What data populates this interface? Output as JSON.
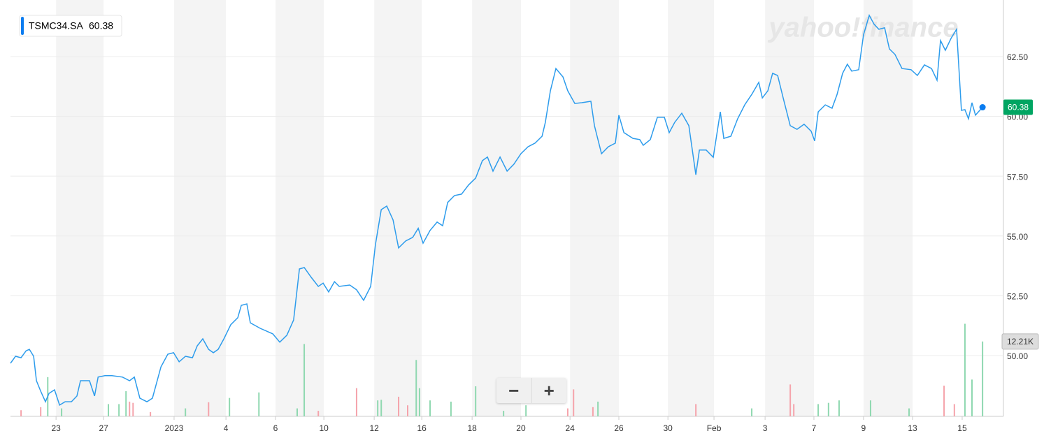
{
  "chart_data": {
    "type": "line",
    "watermark": "yahoo!finance",
    "last_price": 60.38,
    "volume_tag": {
      "value": 12.21,
      "label": "12.21K"
    },
    "xlim": [
      -1.81,
      37.64
    ],
    "xticks": [
      {
        "value": 0,
        "label": "23"
      },
      {
        "value": 1.89,
        "label": "27"
      },
      {
        "value": 4.69,
        "label": "2023"
      },
      {
        "value": 6.75,
        "label": "4"
      },
      {
        "value": 8.72,
        "label": "6"
      },
      {
        "value": 10.64,
        "label": "10"
      },
      {
        "value": 12.64,
        "label": "12"
      },
      {
        "value": 14.53,
        "label": "16"
      },
      {
        "value": 16.53,
        "label": "18"
      },
      {
        "value": 18.47,
        "label": "20"
      },
      {
        "value": 20.42,
        "label": "24"
      },
      {
        "value": 22.36,
        "label": "26"
      },
      {
        "value": 24.31,
        "label": "30"
      },
      {
        "value": 26.14,
        "label": "Feb"
      },
      {
        "value": 28.17,
        "label": "3"
      },
      {
        "value": 30.11,
        "label": "7"
      },
      {
        "value": 32.08,
        "label": "9"
      },
      {
        "value": 34.03,
        "label": "13"
      },
      {
        "value": 36,
        "label": "15"
      }
    ],
    "ylim": [
      47.46,
      64.63
    ],
    "yticks": [
      {
        "value": 50,
        "label": "50.00"
      },
      {
        "value": 52.5,
        "label": "52.50"
      },
      {
        "value": 55,
        "label": "55.00"
      },
      {
        "value": 57.5,
        "label": "57.50"
      },
      {
        "value": 60,
        "label": "60.00"
      },
      {
        "value": 62.5,
        "label": "62.50"
      }
    ],
    "grid": true,
    "series": [
      {
        "name": "TSMC34.SA",
        "color": "#2d9cec",
        "x": [
          -1.81,
          -1.61,
          -1.39,
          -1.19,
          -1.06,
          -0.89,
          -0.78,
          -0.61,
          -0.42,
          -0.28,
          -0.06,
          0.14,
          0.36,
          0.61,
          0.83,
          0.97,
          1.33,
          1.53,
          1.67,
          1.94,
          2.22,
          2.64,
          2.92,
          3.11,
          3.33,
          3.61,
          3.83,
          4.17,
          4.44,
          4.67,
          4.89,
          5.14,
          5.42,
          5.61,
          5.83,
          6.06,
          6.25,
          6.44,
          6.67,
          6.94,
          7.22,
          7.36,
          7.58,
          7.72,
          8.11,
          8.61,
          8.89,
          9.17,
          9.44,
          9.67,
          9.86,
          10.14,
          10.42,
          10.61,
          10.83,
          11.06,
          11.25,
          11.67,
          11.94,
          12.22,
          12.5,
          12.69,
          12.92,
          13.14,
          13.39,
          13.61,
          13.89,
          14.17,
          14.39,
          14.58,
          14.86,
          15.14,
          15.36,
          15.56,
          15.83,
          16.11,
          16.39,
          16.67,
          16.94,
          17.14,
          17.36,
          17.64,
          17.92,
          18.19,
          18.47,
          18.75,
          19.03,
          19.31,
          19.44,
          19.64,
          19.86,
          20.14,
          20.33,
          20.61,
          20.89,
          21.25,
          21.39,
          21.67,
          21.94,
          22.22,
          22.36,
          22.56,
          22.92,
          23.19,
          23.33,
          23.61,
          23.89,
          24.17,
          24.36,
          24.58,
          24.86,
          25.14,
          25.42,
          25.56,
          25.83,
          26.11,
          26.39,
          26.53,
          26.81,
          27.08,
          27.36,
          27.64,
          27.92,
          28.06,
          28.28,
          28.47,
          28.67,
          28.89,
          29.17,
          29.44,
          29.72,
          30.0,
          30.14,
          30.28,
          30.56,
          30.83,
          31.03,
          31.25,
          31.44,
          31.61,
          31.89,
          32.08,
          32.31,
          32.5,
          32.69,
          32.92,
          33.11,
          33.33,
          33.61,
          33.97,
          34.22,
          34.5,
          34.78,
          35.0,
          35.14,
          35.33,
          35.56,
          35.78,
          35.97,
          36.11,
          36.25,
          36.39,
          36.53,
          36.81
        ],
        "values": [
          49.68,
          49.97,
          49.91,
          50.2,
          50.26,
          49.97,
          48.95,
          48.51,
          48.07,
          48.42,
          48.57,
          47.93,
          48.07,
          48.07,
          48.31,
          48.95,
          48.95,
          48.31,
          49.1,
          49.16,
          49.16,
          49.1,
          48.95,
          49.1,
          48.22,
          48.07,
          48.22,
          49.53,
          50.06,
          50.12,
          49.74,
          49.97,
          49.91,
          50.41,
          50.7,
          50.26,
          50.12,
          50.26,
          50.7,
          51.29,
          51.58,
          52.1,
          52.16,
          51.37,
          51.14,
          50.91,
          50.56,
          50.85,
          51.49,
          53.62,
          53.68,
          53.27,
          52.89,
          53.03,
          52.66,
          53.09,
          52.89,
          52.95,
          52.75,
          52.31,
          52.89,
          54.64,
          56.1,
          56.25,
          55.67,
          54.5,
          54.79,
          54.94,
          55.32,
          54.7,
          55.23,
          55.58,
          55.43,
          56.4,
          56.69,
          56.75,
          57.13,
          57.42,
          58.15,
          58.3,
          57.71,
          58.3,
          57.71,
          58.0,
          58.44,
          58.73,
          58.88,
          59.17,
          59.75,
          61.07,
          62.0,
          61.65,
          61.07,
          60.54,
          60.57,
          60.63,
          59.61,
          58.44,
          58.73,
          58.88,
          60.05,
          59.32,
          59.08,
          59.03,
          58.79,
          59.03,
          59.96,
          59.96,
          59.32,
          59.75,
          60.13,
          59.61,
          57.56,
          58.59,
          58.59,
          58.29,
          60.19,
          59.08,
          59.17,
          59.9,
          60.48,
          60.92,
          61.42,
          60.77,
          61.07,
          61.8,
          61.71,
          60.77,
          59.61,
          59.46,
          59.67,
          59.38,
          58.97,
          60.19,
          60.48,
          60.34,
          60.92,
          61.8,
          62.18,
          61.89,
          61.95,
          63.41,
          64.22,
          63.85,
          63.64,
          63.7,
          62.82,
          62.59,
          62.0,
          61.95,
          61.71,
          62.15,
          62.0,
          61.51,
          63.17,
          62.76,
          63.26,
          63.64,
          60.25,
          60.28,
          59.9,
          60.57,
          60.05,
          60.38
        ]
      }
    ],
    "volume": {
      "axis": "y2",
      "up_color": "#8fd8b0",
      "down_color": "#f5a3ab",
      "x_up": [
        -0.33,
        0.22,
        2.08,
        2.5,
        2.78,
        5.14,
        6.89,
        8.06,
        9.58,
        9.86,
        12.78,
        12.92,
        14.31,
        14.44,
        14.86,
        15.69,
        16.67,
        17.78,
        18.67,
        21.53,
        27.64,
        30.28,
        30.69,
        31.11,
        32.36,
        33.89,
        36.11,
        36.39,
        36.81
      ],
      "up": [
        6.4,
        1.3,
        2.0,
        2.0,
        4.1,
        1.3,
        3.0,
        3.9,
        1.3,
        11.8,
        2.6,
        2.7,
        9.2,
        4.6,
        2.6,
        2.4,
        4.9,
        0.9,
        1.8,
        2.4,
        1.3,
        2.0,
        2.2,
        2.6,
        2.6,
        1.3,
        15.1,
        6.0,
        12.21
      ],
      "x_down": [
        -1.39,
        -0.61,
        2.92,
        3.06,
        3.75,
        6.06,
        10.42,
        11.94,
        13.61,
        13.97,
        20.33,
        20.56,
        21.33,
        25.42,
        29.17,
        29.31,
        35.28,
        35.69
      ],
      "down": [
        1.0,
        1.5,
        2.4,
        2.2,
        0.7,
        2.3,
        0.9,
        4.6,
        3.2,
        1.8,
        1.3,
        4.4,
        1.5,
        2.0,
        5.2,
        2.0,
        5.0,
        2.0
      ]
    },
    "y2lim": [
      0,
      67
    ]
  }
}
